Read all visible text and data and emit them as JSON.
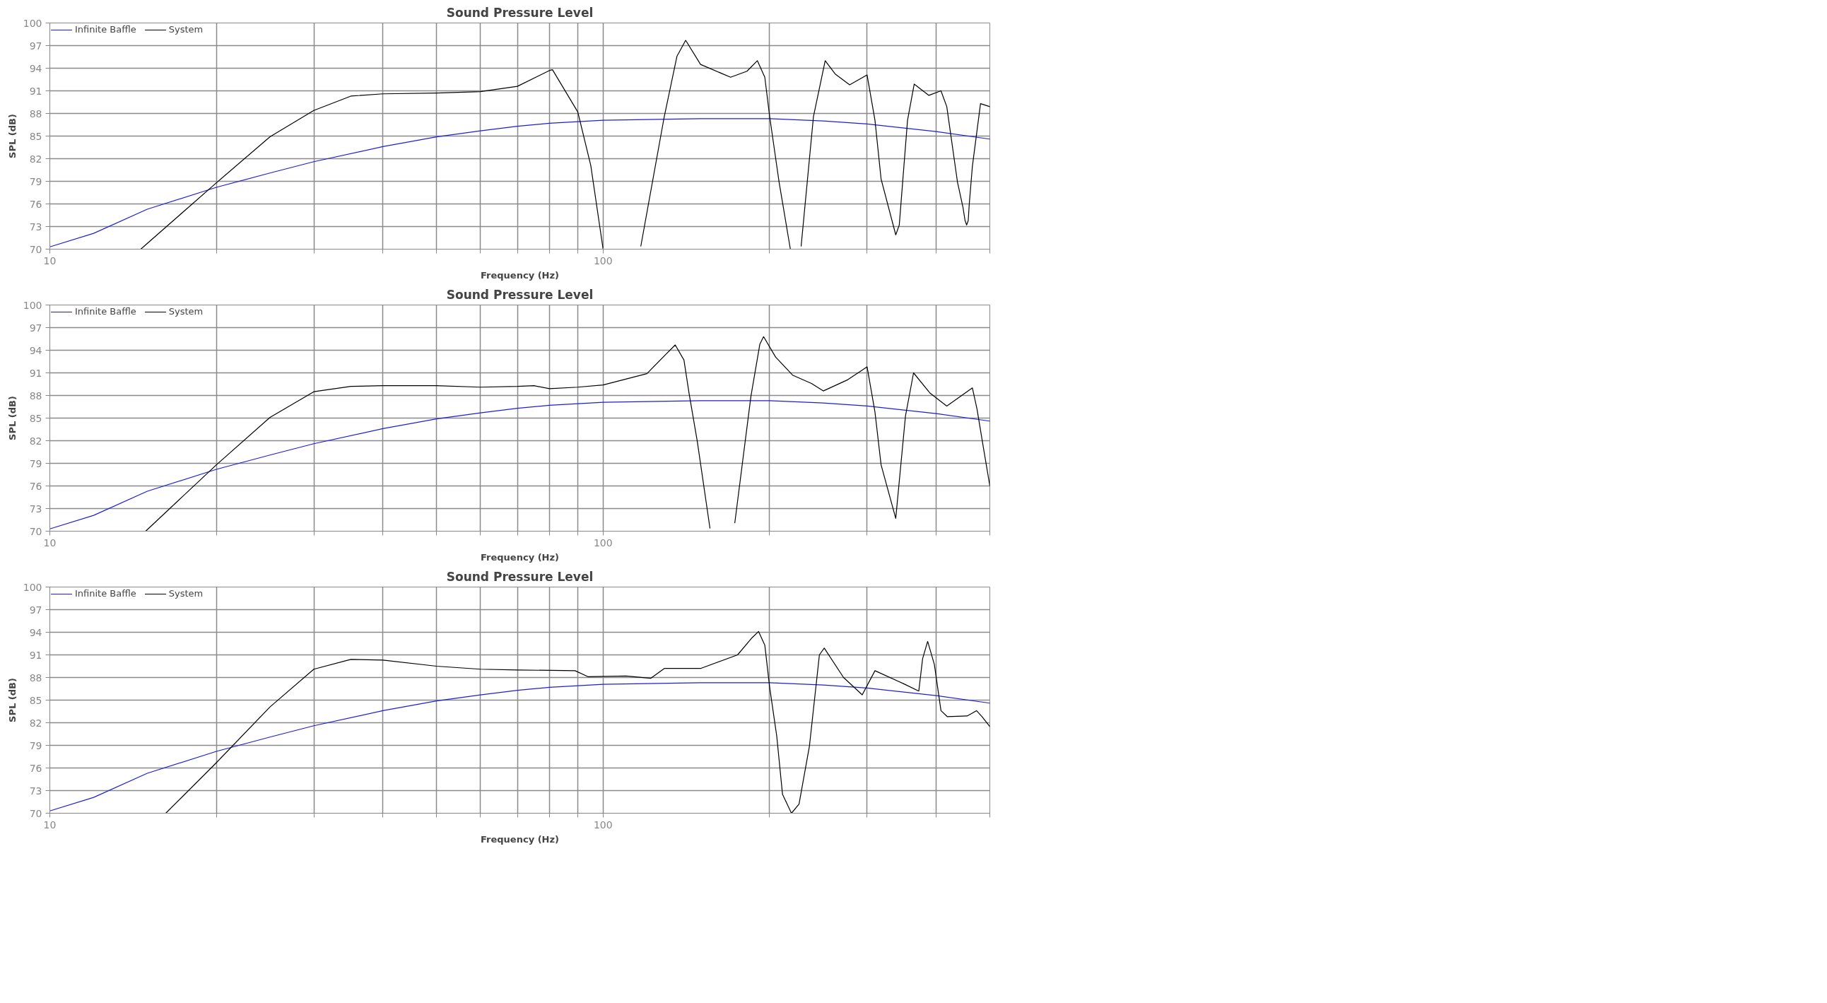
{
  "chart_data": [
    {
      "type": "line",
      "title": "Sound Pressure Level",
      "xlabel": "Frequency (Hz)",
      "ylabel": "SPL (dB)",
      "log": "x",
      "xlim": [
        10,
        500
      ],
      "ylim": [
        70,
        100
      ],
      "xticks": [
        10,
        {
          "value": 20,
          "label": null
        },
        {
          "value": 30,
          "label": null
        },
        {
          "value": 40,
          "label": null
        },
        {
          "value": 50,
          "label": null
        },
        {
          "value": 60,
          "label": null
        },
        {
          "value": 70,
          "label": null
        },
        {
          "value": 80,
          "label": null
        },
        {
          "value": 90,
          "label": null
        },
        100,
        {
          "value": 200,
          "label": null
        },
        {
          "value": 300,
          "label": null
        },
        {
          "value": 400,
          "label": null
        },
        {
          "value": 500,
          "label": null
        }
      ],
      "yticks": [
        70,
        73,
        76,
        79,
        82,
        85,
        88,
        91,
        94,
        97,
        100
      ],
      "grid": true,
      "legend": "top left",
      "series": [
        {
          "name": "Infinite Baffle",
          "color": "#1f1fd6",
          "x": [
            10,
            12,
            15,
            20,
            25,
            30,
            40,
            50,
            60,
            70,
            80,
            100,
            150,
            200,
            250,
            300,
            400,
            500
          ],
          "values": [
            70.3,
            72.1,
            75.3,
            78.2,
            80.1,
            81.6,
            83.6,
            84.9,
            85.7,
            86.3,
            86.7,
            87.1,
            87.3,
            87.3,
            87.0,
            86.6,
            85.6,
            84.6
          ]
        },
        {
          "name": "System",
          "color": "#000000",
          "x": [
            14.6,
            20,
            25,
            30,
            35,
            40,
            50,
            60,
            70,
            80,
            81,
            90,
            95,
            100,
            110,
            117,
            129,
            136,
            141,
            150,
            170,
            182,
            190,
            196,
            200,
            208,
            218,
            223,
            228,
            240,
            252,
            263,
            279,
            300,
            310,
            318,
            338,
            343,
            355,
            365,
            388,
            408,
            418,
            437,
            447,
            451,
            454,
            457,
            459,
            465,
            481,
            500
          ],
          "values": [
            70,
            78.8,
            84.9,
            88.4,
            90.3,
            90.6,
            90.7,
            90.9,
            91.6,
            93.7,
            93.8,
            88.2,
            81.1,
            70,
            null,
            70.4,
            87.6,
            95.6,
            97.7,
            94.5,
            92.8,
            93.6,
            95.0,
            92.8,
            87.6,
            78.9,
            70,
            null,
            70.4,
            87.6,
            95.0,
            93.2,
            91.8,
            93.1,
            87.1,
            79.3,
            71.9,
            73.2,
            87.1,
            91.9,
            90.4,
            91.0,
            88.9,
            78.9,
            75.6,
            73.8,
            73.2,
            73.8,
            76.0,
            81.0,
            89.3,
            88.9
          ]
        }
      ]
    },
    {
      "type": "line",
      "title": "Sound Pressure Level",
      "xlabel": "Frequency (Hz)",
      "ylabel": "SPL (dB)",
      "log": "x",
      "xlim": [
        10,
        500
      ],
      "ylim": [
        70,
        100
      ],
      "xticks": [
        10,
        {
          "value": 20,
          "label": null
        },
        {
          "value": 30,
          "label": null
        },
        {
          "value": 40,
          "label": null
        },
        {
          "value": 50,
          "label": null
        },
        {
          "value": 60,
          "label": null
        },
        {
          "value": 70,
          "label": null
        },
        {
          "value": 80,
          "label": null
        },
        {
          "value": 90,
          "label": null
        },
        100,
        {
          "value": 200,
          "label": null
        },
        {
          "value": 300,
          "label": null
        },
        {
          "value": 400,
          "label": null
        },
        {
          "value": 500,
          "label": null
        }
      ],
      "yticks": [
        70,
        73,
        76,
        79,
        82,
        85,
        88,
        91,
        94,
        97,
        100
      ],
      "grid": true,
      "legend": "top left",
      "series": [
        {
          "name": "Infinite Baffle",
          "color": "#1f1fd6",
          "x": [
            10,
            12,
            15,
            20,
            25,
            30,
            40,
            50,
            60,
            70,
            80,
            100,
            150,
            200,
            250,
            300,
            400,
            500
          ],
          "values": [
            70.3,
            72.1,
            75.3,
            78.2,
            80.1,
            81.6,
            83.6,
            84.9,
            85.7,
            86.3,
            86.7,
            87.1,
            87.3,
            87.3,
            87.0,
            86.6,
            85.6,
            84.6
          ]
        },
        {
          "name": "System",
          "color": "#000000",
          "x": [
            14.9,
            20,
            25,
            30,
            35,
            40,
            50,
            60,
            70,
            75,
            80,
            90,
            100,
            120,
            130,
            135,
            140,
            143,
            148,
            156,
            165,
            173,
            185,
            192,
            195,
            205,
            220,
            238,
            250,
            277,
            300,
            310,
            318,
            338,
            352,
            364,
            390,
            418,
            465,
            474,
            487,
            500
          ],
          "values": [
            70,
            78.8,
            85.1,
            88.5,
            89.2,
            89.3,
            89.3,
            89.1,
            89.2,
            89.3,
            88.9,
            89.1,
            89.4,
            90.9,
            93.5,
            94.7,
            92.7,
            88.3,
            81.9,
            70.4,
            null,
            71.1,
            87.9,
            94.8,
            95.8,
            93.1,
            90.7,
            89.6,
            88.6,
            90.1,
            91.8,
            85.8,
            78.8,
            71.7,
            85.3,
            91.0,
            88.3,
            86.6,
            89.0,
            86.2,
            81.0,
            76.0
          ]
        }
      ]
    },
    {
      "type": "line",
      "title": "Sound Pressure Level",
      "xlabel": "Frequency (Hz)",
      "ylabel": "SPL (dB)",
      "log": "x",
      "xlim": [
        10,
        500
      ],
      "ylim": [
        70,
        100
      ],
      "xticks": [
        10,
        {
          "value": 20,
          "label": null
        },
        {
          "value": 30,
          "label": null
        },
        {
          "value": 40,
          "label": null
        },
        {
          "value": 50,
          "label": null
        },
        {
          "value": 60,
          "label": null
        },
        {
          "value": 70,
          "label": null
        },
        {
          "value": 80,
          "label": null
        },
        {
          "value": 90,
          "label": null
        },
        100,
        {
          "value": 200,
          "label": null
        },
        {
          "value": 300,
          "label": null
        },
        {
          "value": 400,
          "label": null
        },
        {
          "value": 500,
          "label": null
        }
      ],
      "yticks": [
        70,
        73,
        76,
        79,
        82,
        85,
        88,
        91,
        94,
        97,
        100
      ],
      "grid": true,
      "legend": "top left",
      "series": [
        {
          "name": "Infinite Baffle",
          "color": "#1f1fd6",
          "x": [
            10,
            12,
            15,
            20,
            25,
            30,
            40,
            50,
            60,
            70,
            80,
            100,
            150,
            200,
            250,
            300,
            400,
            500
          ],
          "values": [
            70.3,
            72.1,
            75.3,
            78.2,
            80.1,
            81.6,
            83.6,
            84.9,
            85.7,
            86.3,
            86.7,
            87.1,
            87.3,
            87.3,
            87.0,
            86.6,
            85.6,
            84.6
          ]
        },
        {
          "name": "System",
          "color": "#000000",
          "x": [
            16.2,
            20,
            25,
            30,
            35,
            40,
            50,
            60,
            70,
            89,
            94,
            110,
            122,
            129,
            150,
            175,
            186,
            191,
            196,
            200,
            206,
            211,
            219,
            226,
            236,
            246,
            251,
            272,
            294,
            310,
            351,
            372,
            378,
            386,
            397,
            408,
            419,
            455,
            473,
            484,
            500
          ],
          "values": [
            70,
            76.7,
            84.1,
            89.1,
            90.4,
            90.3,
            89.5,
            89.1,
            89.0,
            88.9,
            88.1,
            88.2,
            87.9,
            89.2,
            89.2,
            91.0,
            93.3,
            94.1,
            92.3,
            86.7,
            80.2,
            72.5,
            70.0,
            71.2,
            78.9,
            91.0,
            91.9,
            88.0,
            85.7,
            88.9,
            87.1,
            86.2,
            90.5,
            92.8,
            89.7,
            83.6,
            82.8,
            82.9,
            83.6,
            82.8,
            81.5
          ]
        }
      ]
    }
  ]
}
